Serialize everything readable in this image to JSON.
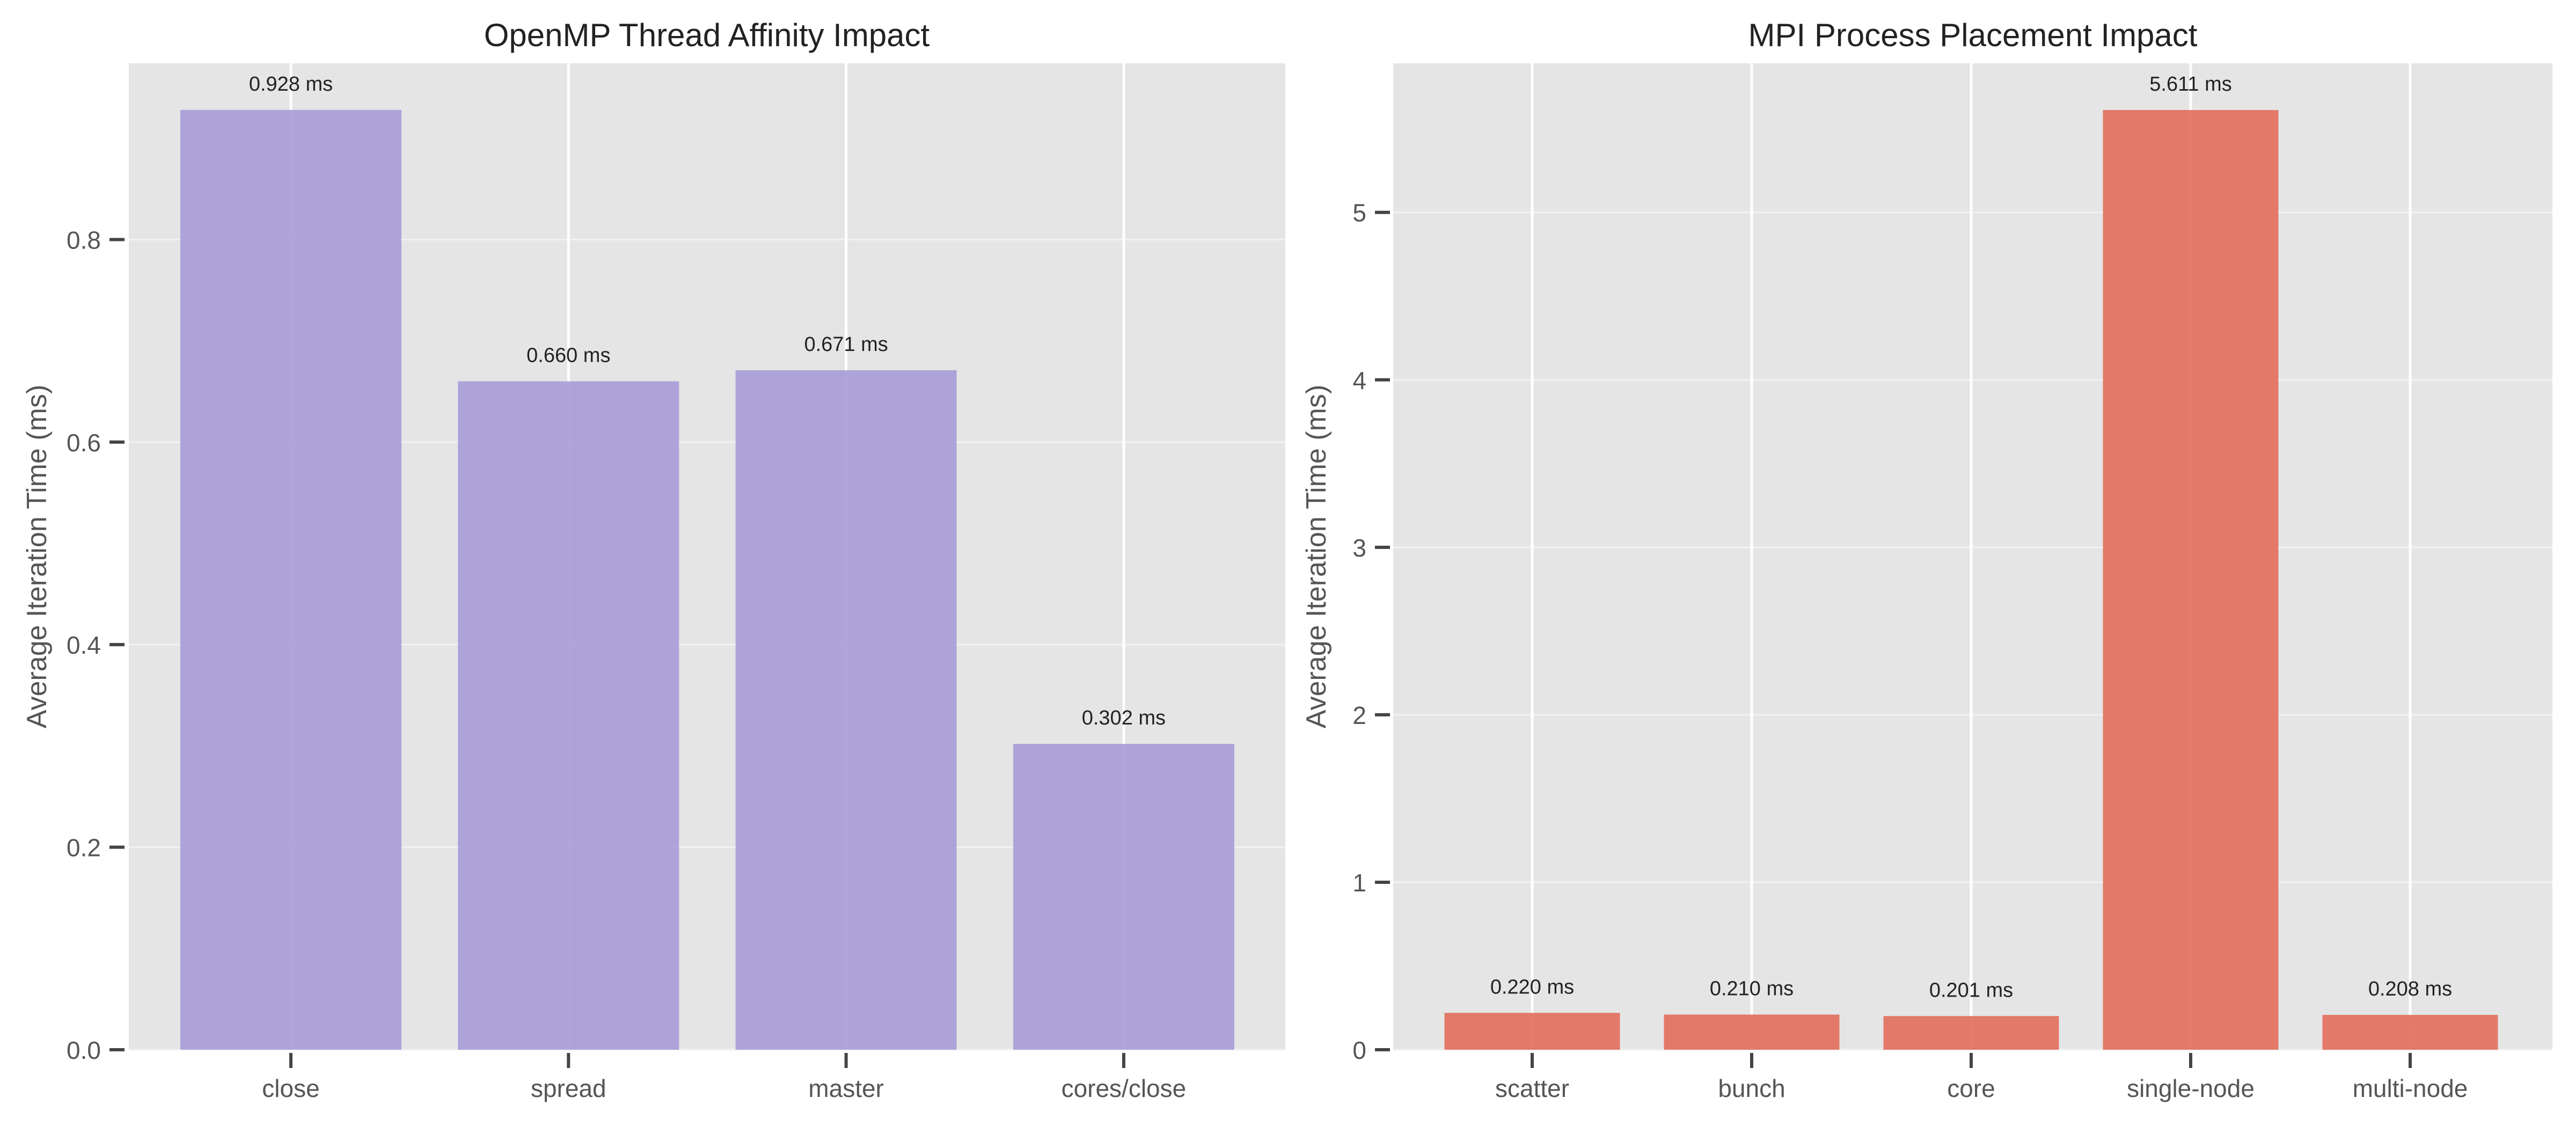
{
  "chart_data": [
    {
      "type": "bar",
      "title": "OpenMP Thread Affinity Impact",
      "xlabel": "",
      "ylabel": "Average Iteration Time (ms)",
      "categories": [
        "close",
        "spread",
        "master",
        "cores/close"
      ],
      "values": [
        0.928,
        0.66,
        0.671,
        0.302
      ],
      "value_labels": [
        "0.928 ms",
        "0.660 ms",
        "0.671 ms",
        "0.302 ms"
      ],
      "ylim": [
        0,
        0.974
      ],
      "yticks": [
        0.0,
        0.2,
        0.4,
        0.6,
        0.8
      ],
      "ytick_labels": [
        "0.0",
        "0.2",
        "0.4",
        "0.6",
        "0.8"
      ],
      "bar_color": "#a99dd8",
      "grid": true
    },
    {
      "type": "bar",
      "title": "MPI Process Placement Impact",
      "xlabel": "",
      "ylabel": "Average Iteration Time (ms)",
      "categories": [
        "scatter",
        "bunch",
        "core",
        "single-node",
        "multi-node"
      ],
      "values": [
        0.22,
        0.21,
        0.201,
        5.611,
        0.208
      ],
      "value_labels": [
        "0.220 ms",
        "0.210 ms",
        "0.201 ms",
        "5.611 ms",
        "0.208 ms"
      ],
      "ylim": [
        0,
        5.89
      ],
      "yticks": [
        0,
        1,
        2,
        3,
        4,
        5
      ],
      "ytick_labels": [
        "0",
        "1",
        "2",
        "3",
        "4",
        "5"
      ],
      "bar_color": "#e2705e",
      "grid": true
    }
  ]
}
